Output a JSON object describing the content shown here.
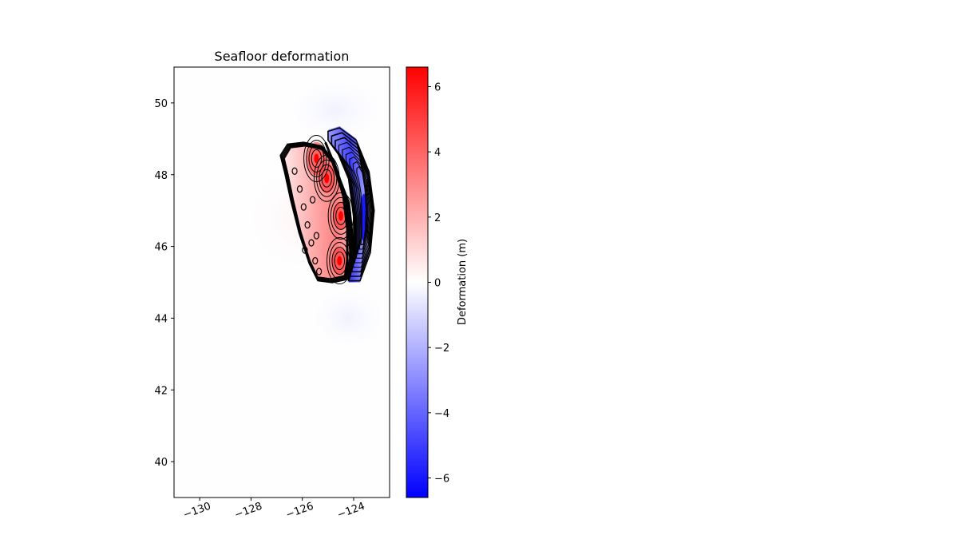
{
  "chart_data": {
    "type": "heatmap",
    "title": "Seafloor deformation",
    "xlabel": "",
    "ylabel": "",
    "xlim": [
      -131,
      -122.6
    ],
    "ylim": [
      39,
      51
    ],
    "xticks": [
      -130,
      -128,
      -126,
      -124
    ],
    "xtick_labels": [
      "−130",
      "−128",
      "−126",
      "−124"
    ],
    "yticks": [
      40,
      42,
      44,
      46,
      48,
      50
    ],
    "ytick_labels": [
      "40",
      "42",
      "44",
      "46",
      "48",
      "50"
    ],
    "grid": false,
    "colormap": "bwr",
    "colors": {
      "negative": "#0000ff",
      "zero": "#ffffff",
      "positive": "#ff0000",
      "contour": "#000000"
    },
    "colorbar": {
      "label": "Deformation (m)",
      "range": [
        -6.6,
        6.6
      ],
      "ticks": [
        -6,
        -4,
        -2,
        0,
        2,
        4,
        6
      ],
      "tick_labels": [
        "−6",
        "−4",
        "−2",
        "0",
        "2",
        "4",
        "6"
      ]
    },
    "uplift_zone": {
      "lon_range": [
        -126.7,
        -124.1
      ],
      "lat_range": [
        45.1,
        48.7
      ],
      "peaks": [
        {
          "lon": -125.45,
          "lat": 48.45,
          "value": 6.5
        },
        {
          "lon": -125.05,
          "lat": 47.9,
          "value": 5.5
        },
        {
          "lon": -124.5,
          "lat": 46.85,
          "value": 5.0
        },
        {
          "lon": -124.55,
          "lat": 45.6,
          "value": 4.5
        }
      ]
    },
    "subsidence_zone": {
      "lon_range": [
        -124.3,
        -123.2
      ],
      "lat_range": [
        45.0,
        49.4
      ],
      "minimum": {
        "lon": -123.6,
        "lat": 46.8,
        "value": -6.0
      }
    }
  }
}
